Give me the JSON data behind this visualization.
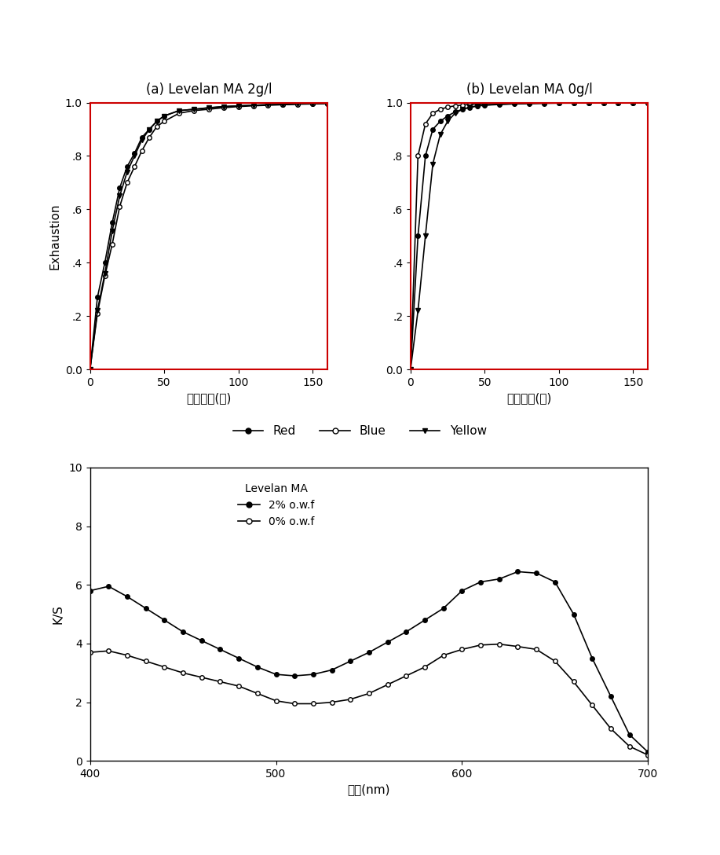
{
  "title_a": "(a) Levelan MA 2g/l",
  "title_b": "(b) Levelan MA 0g/l",
  "xlabel_top": "염색시간(분)",
  "ylabel_top": "Exhaustion",
  "xlabel_bottom": "파장(nm)",
  "ylabel_bottom": "K/S",
  "time_points": [
    0,
    5,
    10,
    15,
    20,
    25,
    30,
    35,
    40,
    45,
    50,
    60,
    70,
    80,
    90,
    100,
    110,
    120,
    130,
    140,
    150,
    160
  ],
  "exhaust_a_red": [
    0.0,
    0.27,
    0.4,
    0.55,
    0.68,
    0.76,
    0.81,
    0.87,
    0.9,
    0.93,
    0.95,
    0.97,
    0.975,
    0.98,
    0.985,
    0.988,
    0.99,
    0.992,
    0.993,
    0.995,
    0.996,
    0.997
  ],
  "exhaust_a_blue": [
    0.0,
    0.21,
    0.35,
    0.47,
    0.61,
    0.7,
    0.76,
    0.82,
    0.87,
    0.91,
    0.93,
    0.96,
    0.97,
    0.975,
    0.981,
    0.985,
    0.988,
    0.99,
    0.992,
    0.994,
    0.995,
    0.997
  ],
  "exhaust_a_yellow": [
    0.0,
    0.22,
    0.36,
    0.52,
    0.65,
    0.74,
    0.8,
    0.86,
    0.9,
    0.93,
    0.95,
    0.97,
    0.975,
    0.981,
    0.985,
    0.988,
    0.99,
    0.992,
    0.993,
    0.995,
    0.996,
    0.997
  ],
  "exhaust_b_red": [
    0.0,
    0.5,
    0.8,
    0.9,
    0.93,
    0.95,
    0.965,
    0.975,
    0.982,
    0.987,
    0.99,
    0.993,
    0.995,
    0.996,
    0.997,
    0.998,
    0.998,
    0.999,
    0.999,
    1.0,
    1.0,
    1.0
  ],
  "exhaust_b_blue": [
    0.0,
    0.8,
    0.92,
    0.96,
    0.975,
    0.983,
    0.988,
    0.991,
    0.993,
    0.995,
    0.996,
    0.997,
    0.998,
    0.999,
    0.999,
    1.0,
    1.0,
    1.0,
    1.0,
    1.0,
    1.0,
    1.0
  ],
  "exhaust_b_yellow": [
    0.0,
    0.22,
    0.5,
    0.77,
    0.88,
    0.93,
    0.96,
    0.975,
    0.983,
    0.988,
    0.991,
    0.994,
    0.996,
    0.997,
    0.998,
    0.999,
    0.999,
    1.0,
    1.0,
    1.0,
    1.0,
    1.0
  ],
  "wavelength": [
    400,
    410,
    420,
    430,
    440,
    450,
    460,
    470,
    480,
    490,
    500,
    510,
    520,
    530,
    540,
    550,
    560,
    570,
    580,
    590,
    600,
    610,
    620,
    630,
    640,
    650,
    660,
    670,
    680,
    690,
    700
  ],
  "ks_2pct": [
    5.8,
    5.95,
    5.6,
    5.2,
    4.8,
    4.4,
    4.1,
    3.8,
    3.5,
    3.2,
    2.95,
    2.9,
    2.95,
    3.1,
    3.4,
    3.7,
    4.05,
    4.4,
    4.8,
    5.2,
    5.8,
    6.1,
    6.2,
    6.45,
    6.4,
    6.1,
    5.0,
    3.5,
    2.2,
    0.9,
    0.3
  ],
  "ks_0pct": [
    3.7,
    3.75,
    3.6,
    3.4,
    3.2,
    3.0,
    2.85,
    2.7,
    2.55,
    2.3,
    2.05,
    1.95,
    1.95,
    2.0,
    2.1,
    2.3,
    2.6,
    2.9,
    3.2,
    3.6,
    3.8,
    3.95,
    3.98,
    3.9,
    3.8,
    3.4,
    2.7,
    1.9,
    1.1,
    0.5,
    0.2
  ],
  "color_black": "#000000",
  "color_gray": "#555555",
  "background": "#ffffff",
  "spine_color": "#cc0000",
  "yticks_top": [
    0.0,
    0.2,
    0.4,
    0.6,
    0.8,
    1.0
  ],
  "ytick_labels_top": [
    "0.0",
    ".2",
    ".4",
    ".6",
    ".8",
    "1.0"
  ],
  "xticks_top": [
    0,
    50,
    100,
    150
  ],
  "yticks_bottom": [
    0,
    2,
    4,
    6,
    8,
    10
  ],
  "xticks_bottom": [
    400,
    500,
    600,
    700
  ]
}
